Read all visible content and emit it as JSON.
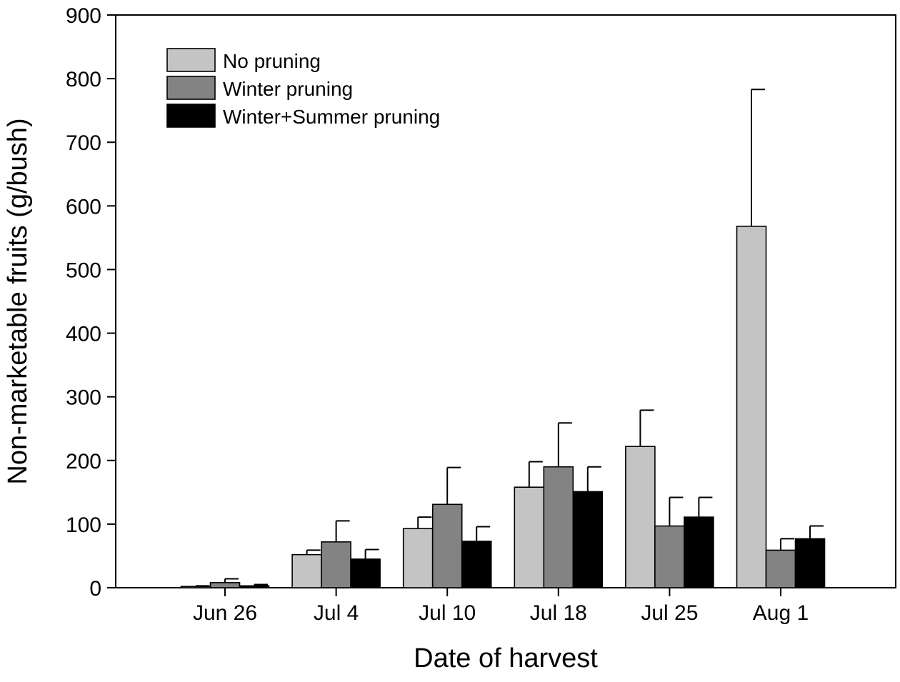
{
  "chart_data": {
    "type": "bar",
    "title": "",
    "xlabel": "Date of harvest",
    "ylabel": "Non-marketable fruits (g/bush)",
    "ylim": [
      0,
      900
    ],
    "yticks": [
      0,
      100,
      200,
      300,
      400,
      500,
      600,
      700,
      800,
      900
    ],
    "grid": false,
    "legend_position": "top-left",
    "categories": [
      "Jun 26",
      "Jul 4",
      "Jul 10",
      "Jul 18",
      "Jul 25",
      "Aug 1"
    ],
    "series": [
      {
        "name": "No pruning",
        "color": "#c4c4c4",
        "values": [
          2,
          52,
          93,
          158,
          222,
          568
        ],
        "errors": [
          1,
          7,
          18,
          40,
          57,
          215
        ]
      },
      {
        "name": "Winter pruning",
        "color": "#838383",
        "values": [
          8,
          72,
          131,
          190,
          97,
          59
        ],
        "errors": [
          6,
          33,
          58,
          69,
          45,
          18
        ]
      },
      {
        "name": "Winter+Summer pruning",
        "color": "#000000",
        "values": [
          3,
          45,
          73,
          151,
          111,
          77
        ],
        "errors": [
          2,
          15,
          23,
          39,
          31,
          20
        ]
      }
    ]
  }
}
